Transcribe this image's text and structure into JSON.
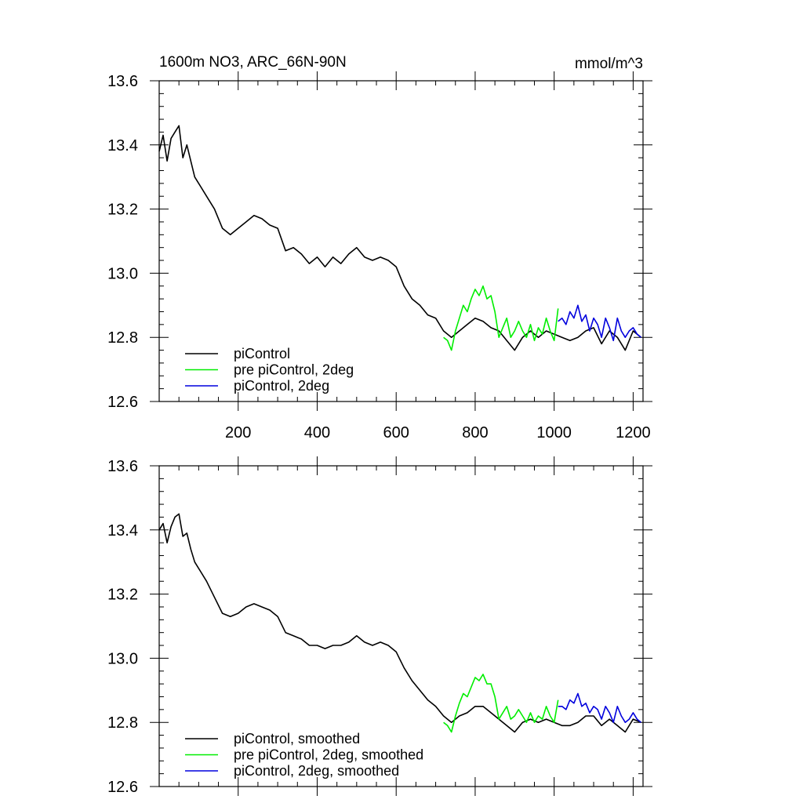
{
  "title_left": "1600m NO3, ARC_66N-90N",
  "title_right": "mmol/m^3",
  "colors": {
    "piControl": "#000000",
    "pre_piControl_2deg": "#00ee00",
    "piControl_2deg": "#0000dd"
  },
  "chart_data": [
    {
      "type": "line",
      "xlim": [
        0,
        1225
      ],
      "ylim": [
        12.6,
        13.6
      ],
      "x_ticks": [
        200,
        400,
        600,
        800,
        1000,
        1200
      ],
      "x_tick_labels": [
        "200",
        "400",
        "600",
        "800",
        "1000",
        "1200"
      ],
      "y_ticks": [
        12.6,
        12.8,
        13.0,
        13.2,
        13.4,
        13.6
      ],
      "y_tick_labels": [
        "12.6",
        "12.8",
        "13.0",
        "13.2",
        "13.4",
        "13.6"
      ],
      "legend_position": "bottom-left",
      "series": [
        {
          "name": "piControl",
          "color": "#000000",
          "x": [
            0,
            10,
            20,
            30,
            40,
            50,
            60,
            70,
            80,
            90,
            100,
            120,
            140,
            160,
            180,
            200,
            220,
            240,
            260,
            280,
            300,
            320,
            340,
            360,
            380,
            400,
            420,
            440,
            460,
            480,
            500,
            520,
            540,
            560,
            580,
            600,
            620,
            640,
            660,
            680,
            700,
            720,
            740,
            760,
            780,
            800,
            820,
            840,
            860,
            880,
            900,
            920,
            940,
            960,
            980,
            1000,
            1020,
            1040,
            1060,
            1080,
            1100,
            1120,
            1140,
            1160,
            1180,
            1200,
            1220
          ],
          "y": [
            13.38,
            13.43,
            13.35,
            13.42,
            13.44,
            13.46,
            13.36,
            13.4,
            13.35,
            13.3,
            13.28,
            13.24,
            13.2,
            13.14,
            13.12,
            13.14,
            13.16,
            13.18,
            13.17,
            13.15,
            13.14,
            13.07,
            13.08,
            13.06,
            13.03,
            13.05,
            13.02,
            13.05,
            13.03,
            13.06,
            13.08,
            13.05,
            13.04,
            13.05,
            13.04,
            13.02,
            12.96,
            12.92,
            12.9,
            12.87,
            12.86,
            12.82,
            12.8,
            12.82,
            12.84,
            12.86,
            12.85,
            12.83,
            12.82,
            12.79,
            12.76,
            12.8,
            12.82,
            12.8,
            12.82,
            12.81,
            12.8,
            12.79,
            12.8,
            12.82,
            12.83,
            12.78,
            12.82,
            12.8,
            12.76,
            12.82,
            12.8
          ]
        },
        {
          "name": "pre piControl, 2deg",
          "color": "#00ee00",
          "x": [
            720,
            730,
            740,
            750,
            760,
            770,
            780,
            790,
            800,
            810,
            820,
            830,
            840,
            850,
            860,
            870,
            880,
            890,
            900,
            910,
            920,
            930,
            940,
            950,
            960,
            970,
            980,
            990,
            1000,
            1010
          ],
          "y": [
            12.8,
            12.79,
            12.76,
            12.82,
            12.86,
            12.9,
            12.88,
            12.92,
            12.95,
            12.93,
            12.96,
            12.92,
            12.93,
            12.88,
            12.8,
            12.83,
            12.86,
            12.8,
            12.82,
            12.85,
            12.82,
            12.8,
            12.84,
            12.79,
            12.83,
            12.81,
            12.86,
            12.82,
            12.79,
            12.89
          ]
        },
        {
          "name": "piControl, 2deg",
          "color": "#0000dd",
          "x": [
            1010,
            1020,
            1030,
            1040,
            1050,
            1060,
            1070,
            1080,
            1090,
            1100,
            1110,
            1120,
            1130,
            1140,
            1150,
            1160,
            1170,
            1180,
            1190,
            1200,
            1210,
            1220
          ],
          "y": [
            12.85,
            12.86,
            12.84,
            12.88,
            12.86,
            12.9,
            12.85,
            12.87,
            12.82,
            12.86,
            12.84,
            12.8,
            12.86,
            12.83,
            12.79,
            12.86,
            12.82,
            12.8,
            12.82,
            12.83,
            12.81,
            12.8
          ]
        }
      ],
      "legend": [
        "piControl",
        "pre piControl, 2deg",
        "piControl, 2deg"
      ]
    },
    {
      "type": "line",
      "xlim": [
        0,
        1225
      ],
      "ylim": [
        12.6,
        13.6
      ],
      "x_ticks": [
        200,
        400,
        600,
        800,
        1000,
        1200
      ],
      "y_ticks": [
        12.6,
        12.8,
        13.0,
        13.2,
        13.4,
        13.6
      ],
      "y_tick_labels": [
        "12.6",
        "12.8",
        "13.0",
        "13.2",
        "13.4",
        "13.6"
      ],
      "legend_position": "bottom-left",
      "series": [
        {
          "name": "piControl, smoothed",
          "color": "#000000",
          "x": [
            0,
            10,
            20,
            30,
            40,
            50,
            60,
            70,
            80,
            90,
            100,
            120,
            140,
            160,
            180,
            200,
            220,
            240,
            260,
            280,
            300,
            320,
            340,
            360,
            380,
            400,
            420,
            440,
            460,
            480,
            500,
            520,
            540,
            560,
            580,
            600,
            620,
            640,
            660,
            680,
            700,
            720,
            740,
            760,
            780,
            800,
            820,
            840,
            860,
            880,
            900,
            920,
            940,
            960,
            980,
            1000,
            1020,
            1040,
            1060,
            1080,
            1100,
            1120,
            1140,
            1160,
            1180,
            1200,
            1220
          ],
          "y": [
            13.4,
            13.42,
            13.36,
            13.41,
            13.44,
            13.45,
            13.38,
            13.39,
            13.34,
            13.3,
            13.28,
            13.24,
            13.19,
            13.14,
            13.13,
            13.14,
            13.16,
            13.17,
            13.16,
            13.15,
            13.13,
            13.08,
            13.07,
            13.06,
            13.04,
            13.04,
            13.03,
            13.04,
            13.04,
            13.05,
            13.07,
            13.05,
            13.04,
            13.05,
            13.04,
            13.02,
            12.97,
            12.93,
            12.9,
            12.87,
            12.85,
            12.82,
            12.8,
            12.82,
            12.83,
            12.85,
            12.85,
            12.83,
            12.81,
            12.79,
            12.77,
            12.8,
            12.81,
            12.8,
            12.81,
            12.8,
            12.79,
            12.79,
            12.8,
            12.82,
            12.82,
            12.79,
            12.81,
            12.79,
            12.77,
            12.81,
            12.8
          ]
        },
        {
          "name": "pre piControl, 2deg, smoothed",
          "color": "#00ee00",
          "x": [
            720,
            730,
            740,
            750,
            760,
            770,
            780,
            790,
            800,
            810,
            820,
            830,
            840,
            850,
            860,
            870,
            880,
            890,
            900,
            910,
            920,
            930,
            940,
            950,
            960,
            970,
            980,
            990,
            1000,
            1010
          ],
          "y": [
            12.8,
            12.79,
            12.77,
            12.82,
            12.86,
            12.89,
            12.88,
            12.91,
            12.94,
            12.93,
            12.95,
            12.92,
            12.92,
            12.88,
            12.81,
            12.83,
            12.85,
            12.81,
            12.82,
            12.84,
            12.82,
            12.8,
            12.83,
            12.8,
            12.82,
            12.81,
            12.85,
            12.82,
            12.8,
            12.87
          ]
        },
        {
          "name": "piControl, 2deg, smoothed",
          "color": "#0000dd",
          "x": [
            1010,
            1020,
            1030,
            1040,
            1050,
            1060,
            1070,
            1080,
            1090,
            1100,
            1110,
            1120,
            1130,
            1140,
            1150,
            1160,
            1170,
            1180,
            1190,
            1200,
            1210,
            1220
          ],
          "y": [
            12.85,
            12.85,
            12.84,
            12.87,
            12.86,
            12.89,
            12.85,
            12.86,
            12.83,
            12.85,
            12.84,
            12.81,
            12.85,
            12.83,
            12.8,
            12.85,
            12.82,
            12.8,
            12.81,
            12.83,
            12.81,
            12.8
          ]
        }
      ],
      "legend": [
        "piControl, smoothed",
        "pre piControl, 2deg, smoothed",
        "piControl, 2deg, smoothed"
      ]
    }
  ]
}
